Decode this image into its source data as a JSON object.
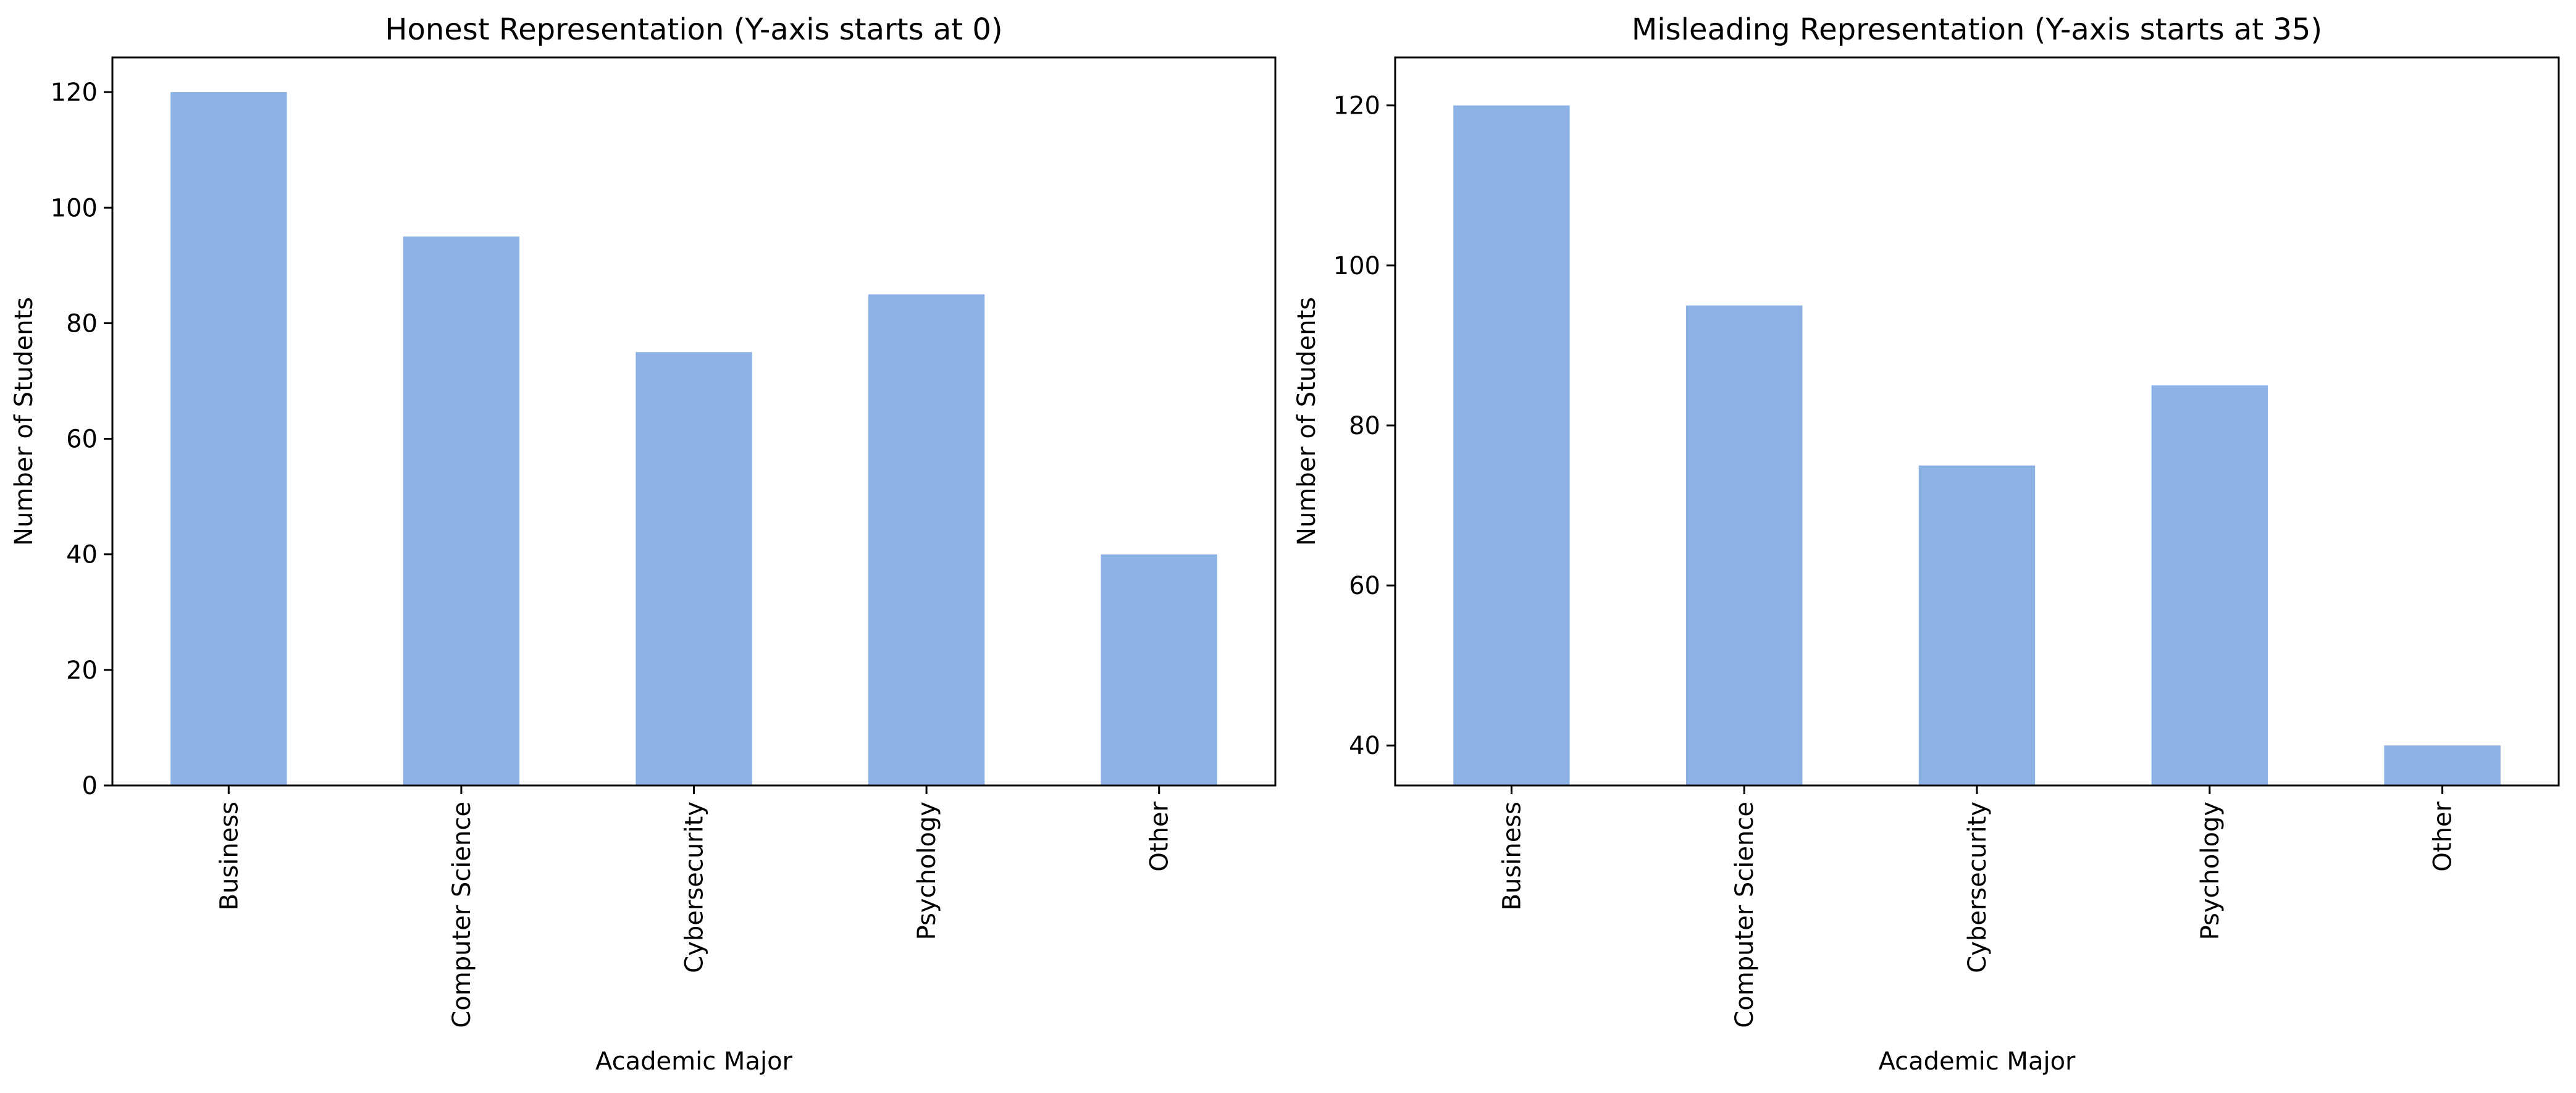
{
  "chart_data": [
    {
      "type": "bar",
      "title": "Honest Representation (Y-axis starts at 0)",
      "xlabel": "Academic Major",
      "ylabel": "Number of Students",
      "categories": [
        "Business",
        "Computer Science",
        "Cybersecurity",
        "Psychology",
        "Other"
      ],
      "values": [
        120,
        95,
        75,
        85,
        40
      ],
      "ylim": [
        0,
        126
      ],
      "yticks": [
        0,
        20,
        40,
        60,
        80,
        100,
        120
      ],
      "bar_color": "#8cb2e5",
      "grid": false,
      "legend": "none"
    },
    {
      "type": "bar",
      "title": "Misleading Representation (Y-axis starts at 35)",
      "xlabel": "Academic Major",
      "ylabel": "Number of Students",
      "categories": [
        "Business",
        "Computer Science",
        "Cybersecurity",
        "Psychology",
        "Other"
      ],
      "values": [
        120,
        95,
        75,
        85,
        40
      ],
      "ylim": [
        35,
        126
      ],
      "yticks": [
        40,
        60,
        80,
        100,
        120
      ],
      "bar_color": "#8cb2e5",
      "grid": false,
      "legend": "none"
    }
  ]
}
